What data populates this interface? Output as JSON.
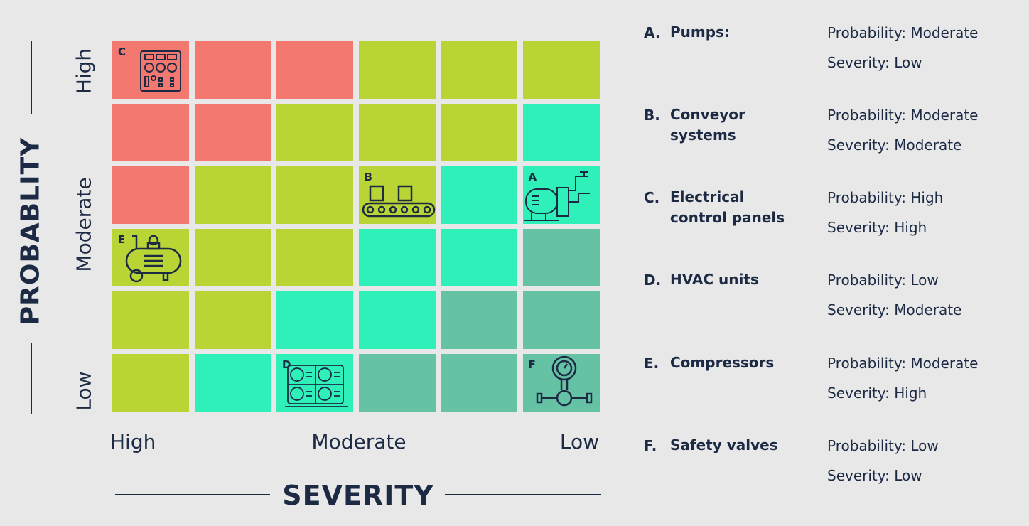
{
  "y_axis": {
    "title": "PROBABLITY",
    "labels": [
      "High",
      "Moderate",
      "Low"
    ]
  },
  "x_axis": {
    "title": "SEVERITY",
    "labels": [
      "High",
      "Moderate",
      "Low"
    ]
  },
  "colors": {
    "red": "#f27870",
    "lime": "#b8d535",
    "aqua": "#2ef0b8",
    "teal": "#66c2a5",
    "background": "#e8e8e8",
    "text": "#1c2a44"
  },
  "matrix": [
    [
      "red",
      "red",
      "red",
      "lime",
      "lime",
      "lime"
    ],
    [
      "red",
      "red",
      "lime",
      "lime",
      "lime",
      "aqua"
    ],
    [
      "red",
      "lime",
      "lime",
      "lime",
      "aqua",
      "aqua"
    ],
    [
      "lime",
      "lime",
      "lime",
      "aqua",
      "aqua",
      "teal"
    ],
    [
      "lime",
      "lime",
      "aqua",
      "aqua",
      "teal",
      "teal"
    ],
    [
      "lime",
      "aqua",
      "aqua",
      "teal",
      "teal",
      "teal"
    ]
  ],
  "markers": [
    {
      "letter": "A",
      "row": 2,
      "col": 5,
      "icon": "pump-icon"
    },
    {
      "letter": "B",
      "row": 2,
      "col": 3,
      "icon": "conveyor-icon"
    },
    {
      "letter": "C",
      "row": 0,
      "col": 0,
      "icon": "control-panel-icon"
    },
    {
      "letter": "D",
      "row": 5,
      "col": 2,
      "icon": "hvac-icon"
    },
    {
      "letter": "E",
      "row": 3,
      "col": 0,
      "icon": "compressor-icon"
    },
    {
      "letter": "F",
      "row": 5,
      "col": 5,
      "icon": "valve-icon"
    }
  ],
  "legend": [
    {
      "letter": "A.",
      "name": "Pumps:",
      "probability": "Probability: Moderate",
      "severity": "Severity:  Low"
    },
    {
      "letter": "B.",
      "name": "Conveyor systems",
      "probability": "Probability: Moderate",
      "severity": "Severity:  Moderate"
    },
    {
      "letter": "C.",
      "name": "Electrical control panels",
      "probability": "Probability: High",
      "severity": "Severity:  High"
    },
    {
      "letter": "D.",
      "name": "HVAC units",
      "probability": "Probability: Low",
      "severity": "Severity:  Moderate"
    },
    {
      "letter": "E.",
      "name": "Compressors",
      "probability": "Probability: Moderate",
      "severity": "Severity:  High"
    },
    {
      "letter": "F.",
      "name": "Safety valves",
      "probability": "Probability: Low",
      "severity": "Severity:  Low"
    }
  ]
}
